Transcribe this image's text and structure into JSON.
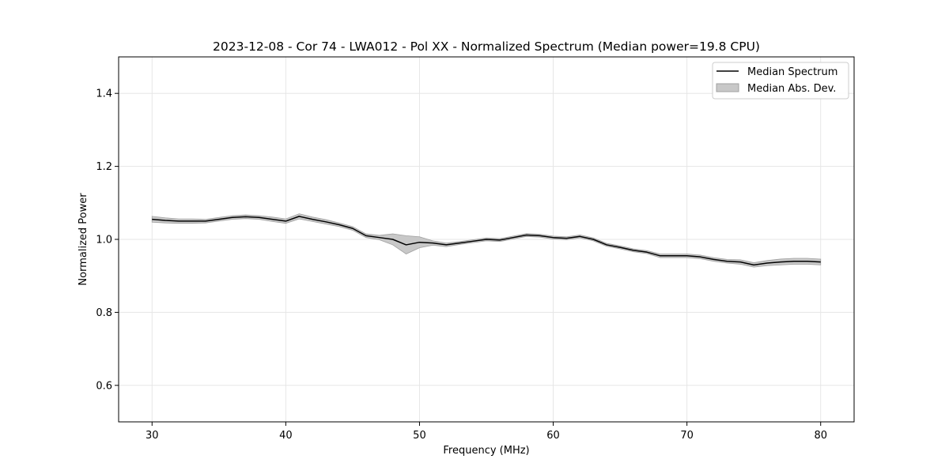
{
  "chart_data": {
    "type": "line",
    "title": "2023-12-08 - Cor 74 - LWA012 - Pol XX - Normalized Spectrum (Median power=19.8 CPU)",
    "xlabel": "Frequency (MHz)",
    "ylabel": "Normalized Power",
    "xlim": [
      27.5,
      82.5
    ],
    "ylim": [
      0.5,
      1.5
    ],
    "xticks": [
      30,
      40,
      50,
      60,
      70,
      80
    ],
    "yticks": [
      0.6,
      0.8,
      1.0,
      1.2,
      1.4
    ],
    "xtick_labels": [
      "30",
      "40",
      "50",
      "60",
      "70",
      "80"
    ],
    "ytick_labels": [
      "0.6",
      "0.8",
      "1.0",
      "1.2",
      "1.4"
    ],
    "grid": true,
    "legend_position": "top-right",
    "legend": [
      "Median Spectrum",
      "Median Abs. Dev."
    ],
    "colors": {
      "line": "#000000",
      "band_fill": "#c8c8c8",
      "band_edge": "#a0a0a0",
      "grid": "#e6e6e6",
      "frame": "#000000"
    },
    "series": [
      {
        "name": "Median Spectrum",
        "x": [
          30,
          31,
          32,
          33,
          34,
          35,
          36,
          37,
          38,
          39,
          40,
          41,
          42,
          43,
          44,
          45,
          46,
          47,
          48,
          49,
          50,
          51,
          52,
          53,
          54,
          55,
          56,
          57,
          58,
          59,
          60,
          61,
          62,
          63,
          64,
          65,
          66,
          67,
          68,
          69,
          70,
          71,
          72,
          73,
          74,
          75,
          76,
          77,
          78,
          79,
          80
        ],
        "values": [
          1.055,
          1.052,
          1.05,
          1.05,
          1.05,
          1.055,
          1.06,
          1.062,
          1.06,
          1.055,
          1.05,
          1.063,
          1.055,
          1.048,
          1.04,
          1.03,
          1.01,
          1.005,
          1.0,
          0.985,
          0.992,
          0.99,
          0.985,
          0.99,
          0.995,
          1.0,
          0.998,
          1.005,
          1.012,
          1.01,
          1.005,
          1.003,
          1.008,
          1.0,
          0.985,
          0.978,
          0.97,
          0.965,
          0.955,
          0.955,
          0.955,
          0.952,
          0.945,
          0.94,
          0.938,
          0.93,
          0.935,
          0.938,
          0.94,
          0.94,
          0.938
        ]
      },
      {
        "name": "Median Abs. Dev.",
        "x": [
          30,
          31,
          32,
          33,
          34,
          35,
          36,
          37,
          38,
          39,
          40,
          41,
          42,
          43,
          44,
          45,
          46,
          47,
          48,
          49,
          50,
          51,
          52,
          53,
          54,
          55,
          56,
          57,
          58,
          59,
          60,
          61,
          62,
          63,
          64,
          65,
          66,
          67,
          68,
          69,
          70,
          71,
          72,
          73,
          74,
          75,
          76,
          77,
          78,
          79,
          80
        ],
        "values": [
          0.008,
          0.007,
          0.006,
          0.006,
          0.005,
          0.005,
          0.005,
          0.005,
          0.005,
          0.006,
          0.006,
          0.007,
          0.006,
          0.006,
          0.005,
          0.005,
          0.005,
          0.006,
          0.015,
          0.025,
          0.015,
          0.006,
          0.005,
          0.004,
          0.004,
          0.004,
          0.004,
          0.004,
          0.004,
          0.004,
          0.004,
          0.004,
          0.004,
          0.004,
          0.004,
          0.004,
          0.004,
          0.004,
          0.005,
          0.005,
          0.005,
          0.005,
          0.005,
          0.005,
          0.006,
          0.006,
          0.007,
          0.008,
          0.008,
          0.008,
          0.008
        ]
      }
    ]
  }
}
